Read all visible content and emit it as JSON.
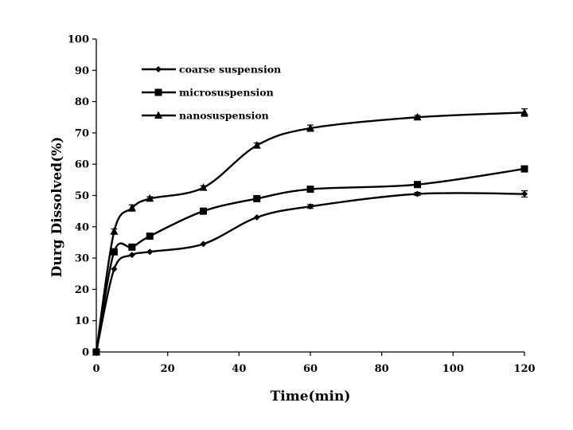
{
  "chart_data": {
    "type": "line",
    "title": "",
    "xlabel": "Time(min)",
    "ylabel": "Durg Dissolved(%)",
    "xlim": [
      0,
      120
    ],
    "ylim": [
      0,
      100
    ],
    "xticks": [
      0,
      20,
      40,
      60,
      80,
      100,
      120
    ],
    "yticks": [
      0,
      10,
      20,
      30,
      40,
      50,
      60,
      70,
      80,
      90,
      100
    ],
    "tick_labels_x": [
      "0",
      "20",
      "40",
      "60",
      "80",
      "100",
      "120"
    ],
    "tick_labels_y": [
      "0",
      "10",
      "20",
      "30",
      "40",
      "50",
      "60",
      "70",
      "80",
      "90",
      "100"
    ],
    "grid": false,
    "legend_position": "top-left",
    "x": [
      0,
      5,
      10,
      15,
      30,
      45,
      60,
      90,
      120
    ],
    "series": [
      {
        "name": "coarse suspension",
        "marker": "diamond",
        "values": [
          0,
          26.5,
          31,
          32,
          34.5,
          43,
          46.5,
          50.5,
          50.5
        ],
        "errors": [
          0,
          0,
          0,
          0,
          0,
          0,
          0.6,
          0.5,
          1.0
        ]
      },
      {
        "name": "microsuspension",
        "marker": "square",
        "values": [
          0,
          32,
          33.5,
          37,
          45,
          49,
          52,
          53.5,
          58.5
        ],
        "errors": [
          0,
          0,
          0,
          0,
          0.8,
          0,
          0,
          0,
          0
        ]
      },
      {
        "name": "nanosuspension",
        "marker": "triangle",
        "values": [
          0,
          38.5,
          46,
          49,
          52.5,
          66,
          71.5,
          75,
          76.5
        ],
        "errors": [
          0,
          0.8,
          1.0,
          0.6,
          0.6,
          0.8,
          1.0,
          0.6,
          1.2
        ]
      }
    ]
  }
}
